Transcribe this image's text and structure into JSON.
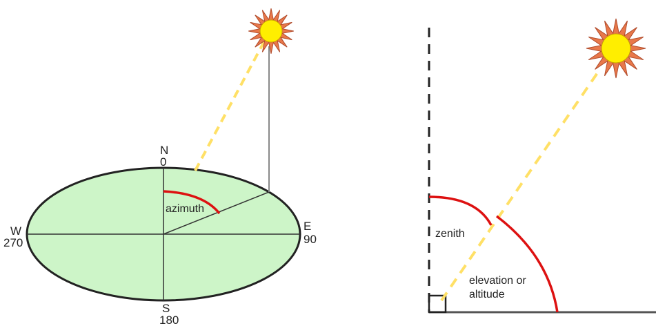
{
  "compass": {
    "north": "N",
    "north_degrees": "0",
    "east": "E",
    "east_degrees": "90",
    "south": "S",
    "south_degrees": "180",
    "west": "W",
    "west_degrees": "270"
  },
  "labels": {
    "azimuth": "azimuth",
    "zenith": "zenith",
    "elevation_line1": "elevation or",
    "elevation_line2": "altitude"
  },
  "colors": {
    "ground_fill": "#cdf5c8",
    "outline": "#222222",
    "sun_ray": "#ffe066",
    "angle_arc": "#dd1111",
    "sun_core": "#ffee00",
    "sun_petals": "#e8784a",
    "vertical_line": "#888888"
  },
  "icons": {
    "sun_left": "sun-icon",
    "sun_right": "sun-icon"
  }
}
